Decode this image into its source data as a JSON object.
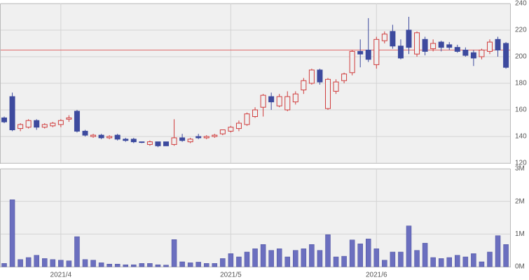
{
  "chart_data": [
    {
      "type": "candlestick",
      "up_color": "#d03c3c",
      "down_color": "#3d4a9e",
      "open": [
        154,
        170,
        146,
        147,
        152,
        147,
        148,
        149,
        153,
        159,
        144,
        140,
        141,
        139,
        141,
        138,
        138,
        136,
        134,
        136,
        136,
        134,
        139,
        136,
        140,
        139,
        140,
        142,
        144,
        146,
        149,
        155,
        162,
        170,
        163,
        160,
        166,
        175,
        180,
        190,
        161,
        174,
        182,
        188,
        204,
        205,
        194,
        212,
        219,
        208,
        220,
        202,
        213,
        206,
        211,
        209,
        207,
        205,
        203,
        200,
        204,
        213,
        210
      ],
      "high": [
        155,
        173,
        150,
        153,
        153,
        150,
        151,
        153,
        156,
        160,
        145,
        142,
        142,
        141,
        142,
        139,
        139,
        136,
        137,
        136,
        136,
        153,
        142,
        139,
        142,
        141,
        142,
        145,
        148,
        152,
        158,
        162,
        172,
        173,
        172,
        174,
        174,
        184,
        191,
        191,
        184,
        183,
        188,
        205,
        213,
        229,
        215,
        219,
        224,
        213,
        230,
        219,
        215,
        213,
        212,
        211,
        209,
        207,
        205,
        206,
        213,
        215,
        211
      ],
      "low": [
        150,
        144,
        144,
        146,
        145,
        146,
        147,
        147,
        151,
        143,
        140,
        139,
        138,
        138,
        137,
        136,
        135,
        135,
        133,
        132,
        133,
        133,
        136,
        135,
        138,
        138,
        139,
        141,
        143,
        144,
        148,
        154,
        155,
        160,
        162,
        159,
        164,
        172,
        179,
        179,
        160,
        172,
        180,
        186,
        192,
        196,
        191,
        210,
        206,
        198,
        202,
        200,
        201,
        204,
        204,
        205,
        203,
        200,
        193,
        198,
        202,
        200,
        191
      ],
      "close": [
        151,
        145,
        149,
        152,
        147,
        149,
        150,
        152,
        154,
        144,
        141,
        141,
        139,
        140,
        138,
        137,
        136,
        135.5,
        136,
        133,
        133,
        139,
        137,
        138,
        139,
        140,
        141,
        145,
        147,
        150,
        157,
        160,
        171,
        166,
        170,
        170,
        172,
        182,
        190,
        181,
        183,
        181,
        187,
        204,
        202,
        198,
        213,
        217,
        208,
        199,
        207,
        218,
        204,
        210,
        207,
        207,
        204,
        201,
        199,
        205,
        211,
        205,
        192
      ],
      "ylim": [
        120,
        240
      ],
      "yticks": [
        120,
        140,
        160,
        180,
        200,
        220,
        240
      ],
      "reference_line": 205,
      "reference_color": "#e06a6a",
      "grid": true
    },
    {
      "type": "bar",
      "color": "#6b6fbf",
      "categories": [
        null,
        null,
        null,
        null,
        null,
        null,
        null,
        "2021/4",
        null,
        null,
        null,
        null,
        null,
        null,
        null,
        null,
        null,
        null,
        null,
        null,
        null,
        null,
        null,
        null,
        null,
        null,
        null,
        null,
        "2021/5",
        null,
        null,
        null,
        null,
        null,
        null,
        null,
        null,
        null,
        null,
        null,
        null,
        null,
        null,
        null,
        null,
        null,
        "2021/6",
        null,
        null,
        null,
        null,
        null,
        null,
        null,
        null,
        null,
        null,
        null,
        null,
        null,
        null,
        null,
        null
      ],
      "values": [
        100000,
        2050000,
        220000,
        280000,
        350000,
        250000,
        220000,
        200000,
        180000,
        920000,
        220000,
        200000,
        120000,
        80000,
        80000,
        60000,
        60000,
        100000,
        100000,
        60000,
        50000,
        830000,
        150000,
        120000,
        140000,
        100000,
        100000,
        250000,
        400000,
        300000,
        450000,
        550000,
        680000,
        500000,
        550000,
        300000,
        500000,
        550000,
        680000,
        500000,
        980000,
        300000,
        320000,
        820000,
        700000,
        850000,
        550000,
        200000,
        450000,
        450000,
        1250000,
        500000,
        720000,
        280000,
        250000,
        280000,
        350000,
        300000,
        400000,
        150000,
        450000,
        950000,
        680000
      ],
      "ylim": [
        0,
        3000000
      ],
      "yticks": [
        {
          "value": 0,
          "label": "0M"
        },
        {
          "value": 1000000,
          "label": "1M"
        },
        {
          "value": 2000000,
          "label": "2M"
        },
        {
          "value": 3000000,
          "label": "3M"
        }
      ],
      "grid": true
    }
  ]
}
